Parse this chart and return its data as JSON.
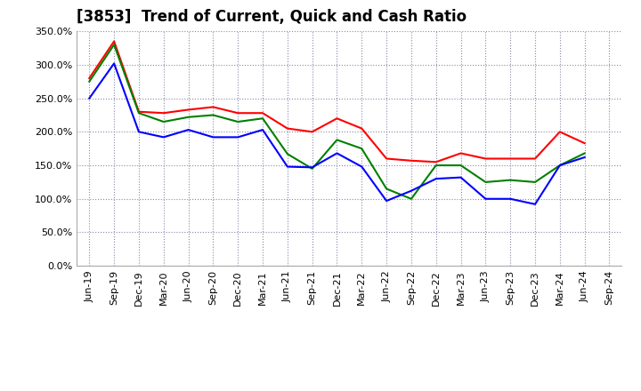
{
  "title": "[3853]  Trend of Current, Quick and Cash Ratio",
  "labels": [
    "Jun-19",
    "Sep-19",
    "Dec-19",
    "Mar-20",
    "Jun-20",
    "Sep-20",
    "Dec-20",
    "Mar-21",
    "Jun-21",
    "Sep-21",
    "Dec-21",
    "Mar-22",
    "Jun-22",
    "Sep-22",
    "Dec-22",
    "Mar-23",
    "Jun-23",
    "Sep-23",
    "Dec-23",
    "Mar-24",
    "Jun-24",
    "Sep-24"
  ],
  "current_ratio": [
    280,
    335,
    230,
    228,
    233,
    237,
    228,
    228,
    205,
    200,
    220,
    205,
    160,
    157,
    155,
    168,
    160,
    160,
    160,
    200,
    183,
    null
  ],
  "quick_ratio": [
    275,
    330,
    228,
    215,
    222,
    225,
    215,
    220,
    167,
    145,
    188,
    175,
    115,
    100,
    150,
    150,
    125,
    128,
    125,
    150,
    168,
    null
  ],
  "cash_ratio": [
    250,
    302,
    200,
    192,
    203,
    192,
    192,
    203,
    148,
    147,
    168,
    148,
    97,
    112,
    130,
    132,
    100,
    100,
    92,
    150,
    162,
    null
  ],
  "current_color": "#FF0000",
  "quick_color": "#008000",
  "cash_color": "#0000FF",
  "ylim": [
    0,
    350
  ],
  "yticks": [
    0,
    50,
    100,
    150,
    200,
    250,
    300,
    350
  ],
  "background_color": "#FFFFFF",
  "plot_bg_color": "#FFFFFF",
  "grid_color": "#8888AA",
  "title_fontsize": 12,
  "legend_fontsize": 9,
  "tick_fontsize": 8
}
